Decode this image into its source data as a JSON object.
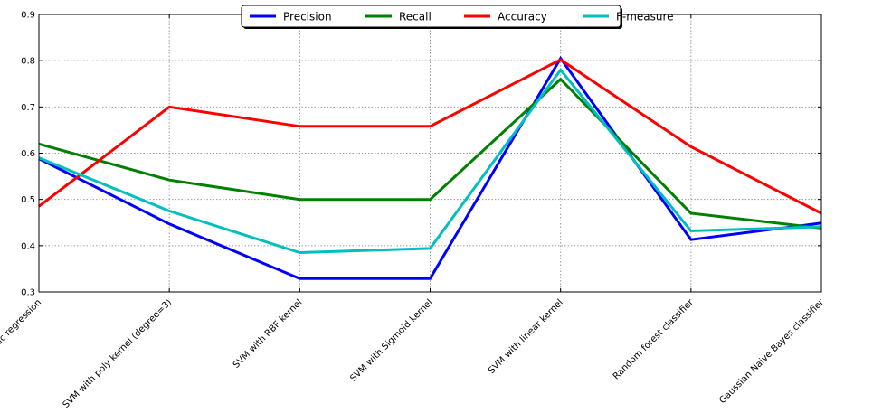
{
  "chart_data": {
    "type": "line",
    "title": "",
    "xlabel": "",
    "ylabel": "",
    "categories": [
      "Logistic regression",
      "SVM with poly kernel (degree=3)",
      "SVM with RBF kernel",
      "SVM with Sigmoid kernel",
      "SVM with linear kernel",
      "Random forest classifier",
      "Gaussian Naive Bayes classifier"
    ],
    "ylim": [
      0.3,
      0.9
    ],
    "yticks": [
      "0.3",
      "0.4",
      "0.5",
      "0.6",
      "0.7",
      "0.8",
      "0.9"
    ],
    "grid": true,
    "legend_position": "top-center",
    "series": [
      {
        "name": "Precision",
        "color": "#0000ff",
        "values": [
          0.588,
          0.447,
          0.329,
          0.329,
          0.805,
          0.413,
          0.449
        ]
      },
      {
        "name": "Recall",
        "color": "#008000",
        "values": [
          0.62,
          0.542,
          0.5,
          0.5,
          0.76,
          0.47,
          0.438
        ]
      },
      {
        "name": "Accuracy",
        "color": "#ff0000",
        "values": [
          0.485,
          0.7,
          0.658,
          0.658,
          0.802,
          0.614,
          0.47
        ]
      },
      {
        "name": "F-measure",
        "color": "#00bfbf",
        "values": [
          0.59,
          0.475,
          0.385,
          0.394,
          0.78,
          0.432,
          0.441
        ]
      }
    ]
  }
}
